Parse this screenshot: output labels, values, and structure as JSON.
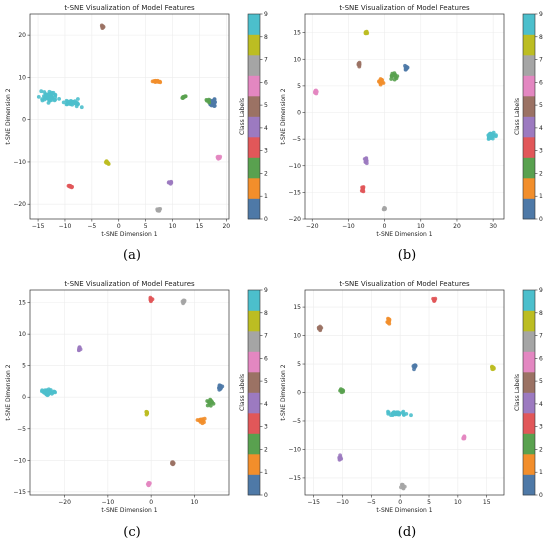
{
  "figure": {
    "colors": [
      "#4e79a7",
      "#f28e2b",
      "#59a14f",
      "#e15759",
      "#9c7ac0",
      "#9b7264",
      "#e387c1",
      "#a5a5a5",
      "#bcbd22",
      "#4cbfcc"
    ],
    "colorbar_label": "Class Labels",
    "colorbar_ticks": [
      "0",
      "1",
      "2",
      "3",
      "4",
      "5",
      "6",
      "7",
      "8",
      "9"
    ]
  },
  "chart_data": [
    {
      "panel": "a",
      "caption": "(a)",
      "type": "scatter",
      "title": "t-SNE Visualization of Model Features",
      "xlabel": "t-SNE Dimension 1",
      "ylabel": "t-SNE Dimension 2",
      "xlim": [
        -16.5,
        20.5
      ],
      "ylim": [
        -23.5,
        25
      ],
      "xticks": [
        -15,
        -10,
        -5,
        0,
        5,
        10,
        15,
        20
      ],
      "yticks": [
        -20,
        -10,
        0,
        10,
        20
      ],
      "grid": true,
      "clusters": [
        {
          "cls": 0,
          "x": 17.5,
          "y": 4.0,
          "sx": 0.6,
          "sy": 0.8,
          "n": 26
        },
        {
          "cls": 1,
          "x": 7.0,
          "y": 9.0,
          "sx": 0.7,
          "sy": 0.3,
          "n": 14
        },
        {
          "cls": 2,
          "x": 12.0,
          "y": 5.5,
          "sx": 0.3,
          "sy": 0.3,
          "n": 8
        },
        {
          "cls": 2,
          "x": 16.5,
          "y": 4.5,
          "sx": 0.5,
          "sy": 0.3,
          "n": 6
        },
        {
          "cls": 3,
          "x": -9.0,
          "y": -15.8,
          "sx": 0.3,
          "sy": 0.3,
          "n": 9
        },
        {
          "cls": 4,
          "x": 9.5,
          "y": -15.0,
          "sx": 0.3,
          "sy": 0.3,
          "n": 9
        },
        {
          "cls": 5,
          "x": -3.0,
          "y": 22.0,
          "sx": 0.3,
          "sy": 0.3,
          "n": 9
        },
        {
          "cls": 6,
          "x": 18.5,
          "y": -9.0,
          "sx": 0.3,
          "sy": 0.3,
          "n": 9
        },
        {
          "cls": 7,
          "x": 7.5,
          "y": -21.3,
          "sx": 0.3,
          "sy": 0.3,
          "n": 9
        },
        {
          "cls": 8,
          "x": -2.0,
          "y": -10.0,
          "sx": 0.3,
          "sy": 0.3,
          "n": 9
        },
        {
          "cls": 9,
          "x": -13.0,
          "y": 5.5,
          "sx": 1.6,
          "sy": 1.2,
          "n": 50
        },
        {
          "cls": 9,
          "x": -8.5,
          "y": 4.0,
          "sx": 1.3,
          "sy": 0.7,
          "n": 30
        }
      ]
    },
    {
      "panel": "b",
      "caption": "(b)",
      "type": "scatter",
      "title": "t-SNE Visualization of Model Features",
      "xlabel": "t-SNE Dimension 1",
      "ylabel": "t-SNE Dimension 2",
      "xlim": [
        -22,
        33
      ],
      "ylim": [
        -20,
        18.5
      ],
      "xticks": [
        -20,
        -10,
        0,
        10,
        20,
        30
      ],
      "yticks": [
        -20,
        -15,
        -10,
        -5,
        0,
        5,
        10,
        15
      ],
      "grid": true,
      "clusters": [
        {
          "cls": 0,
          "x": 6.0,
          "y": 8.3,
          "sx": 0.3,
          "sy": 0.3,
          "n": 12
        },
        {
          "cls": 1,
          "x": -1.0,
          "y": 5.8,
          "sx": 0.8,
          "sy": 0.5,
          "n": 16
        },
        {
          "cls": 2,
          "x": 2.5,
          "y": 6.8,
          "sx": 1.0,
          "sy": 0.5,
          "n": 12
        },
        {
          "cls": 3,
          "x": -6.0,
          "y": -14.5,
          "sx": 0.3,
          "sy": 0.4,
          "n": 9
        },
        {
          "cls": 4,
          "x": -5.0,
          "y": -9.0,
          "sx": 0.3,
          "sy": 0.5,
          "n": 9
        },
        {
          "cls": 5,
          "x": -7.0,
          "y": 9.0,
          "sx": 0.3,
          "sy": 0.3,
          "n": 9
        },
        {
          "cls": 6,
          "x": -19.0,
          "y": 3.8,
          "sx": 0.3,
          "sy": 0.3,
          "n": 9
        },
        {
          "cls": 7,
          "x": 0.0,
          "y": -18.0,
          "sx": 0.3,
          "sy": 0.3,
          "n": 9
        },
        {
          "cls": 8,
          "x": -5.0,
          "y": 15.0,
          "sx": 0.3,
          "sy": 0.4,
          "n": 9
        },
        {
          "cls": 9,
          "x": 29.5,
          "y": -4.3,
          "sx": 1.0,
          "sy": 0.6,
          "n": 40
        }
      ]
    },
    {
      "panel": "c",
      "caption": "(c)",
      "type": "scatter",
      "title": "t-SNE Visualization of Model Features",
      "xlabel": "t-SNE Dimension 1",
      "ylabel": "t-SNE Dimension 2",
      "xlim": [
        -28,
        18
      ],
      "ylim": [
        -15.5,
        17
      ],
      "xticks": [
        -20,
        -10,
        0,
        10
      ],
      "yticks": [
        -15,
        -10,
        -5,
        0,
        5,
        10,
        15
      ],
      "grid": true,
      "clusters": [
        {
          "cls": 0,
          "x": 16.0,
          "y": 1.5,
          "sx": 0.4,
          "sy": 0.5,
          "n": 14
        },
        {
          "cls": 1,
          "x": 11.5,
          "y": -3.7,
          "sx": 0.7,
          "sy": 0.4,
          "n": 16
        },
        {
          "cls": 2,
          "x": 13.8,
          "y": -0.8,
          "sx": 0.7,
          "sy": 0.8,
          "n": 14
        },
        {
          "cls": 3,
          "x": 0.0,
          "y": 15.5,
          "sx": 0.3,
          "sy": 0.3,
          "n": 9
        },
        {
          "cls": 4,
          "x": -16.5,
          "y": 7.8,
          "sx": 0.3,
          "sy": 0.3,
          "n": 9
        },
        {
          "cls": 5,
          "x": 5.0,
          "y": -10.5,
          "sx": 0.3,
          "sy": 0.3,
          "n": 9
        },
        {
          "cls": 6,
          "x": -0.5,
          "y": -13.8,
          "sx": 0.3,
          "sy": 0.3,
          "n": 9
        },
        {
          "cls": 7,
          "x": 7.5,
          "y": 15.2,
          "sx": 0.3,
          "sy": 0.3,
          "n": 9
        },
        {
          "cls": 8,
          "x": -1.0,
          "y": -2.5,
          "sx": 0.3,
          "sy": 0.4,
          "n": 9
        },
        {
          "cls": 9,
          "x": -24.0,
          "y": 0.8,
          "sx": 1.2,
          "sy": 0.4,
          "n": 36
        }
      ]
    },
    {
      "panel": "d",
      "caption": "(d)",
      "type": "scatter",
      "title": "t-SNE Visualization of Model Features",
      "xlabel": "t-SNE Dimension 1",
      "ylabel": "t-SNE Dimension 2",
      "xlim": [
        -16.5,
        18
      ],
      "ylim": [
        -18,
        18
      ],
      "xticks": [
        -15,
        -10,
        -5,
        0,
        5,
        10,
        15
      ],
      "yticks": [
        -15,
        -10,
        -5,
        0,
        5,
        10,
        15
      ],
      "grid": true,
      "clusters": [
        {
          "cls": 0,
          "x": 2.5,
          "y": 4.6,
          "sx": 0.3,
          "sy": 0.3,
          "n": 10
        },
        {
          "cls": 1,
          "x": -2.0,
          "y": 12.5,
          "sx": 0.3,
          "sy": 0.4,
          "n": 9
        },
        {
          "cls": 2,
          "x": -10.0,
          "y": 0.3,
          "sx": 0.3,
          "sy": 0.3,
          "n": 9
        },
        {
          "cls": 3,
          "x": 6.0,
          "y": 16.3,
          "sx": 0.3,
          "sy": 0.3,
          "n": 9
        },
        {
          "cls": 4,
          "x": -10.5,
          "y": -11.5,
          "sx": 0.3,
          "sy": 0.3,
          "n": 9
        },
        {
          "cls": 5,
          "x": -14.0,
          "y": 11.3,
          "sx": 0.3,
          "sy": 0.3,
          "n": 9
        },
        {
          "cls": 6,
          "x": 11.0,
          "y": -8.0,
          "sx": 0.3,
          "sy": 0.3,
          "n": 9
        },
        {
          "cls": 7,
          "x": 0.5,
          "y": -16.5,
          "sx": 0.3,
          "sy": 0.3,
          "n": 9
        },
        {
          "cls": 8,
          "x": 16.0,
          "y": 4.3,
          "sx": 0.3,
          "sy": 0.3,
          "n": 9
        },
        {
          "cls": 9,
          "x": -0.5,
          "y": -3.7,
          "sx": 1.6,
          "sy": 0.35,
          "n": 36
        }
      ]
    }
  ]
}
